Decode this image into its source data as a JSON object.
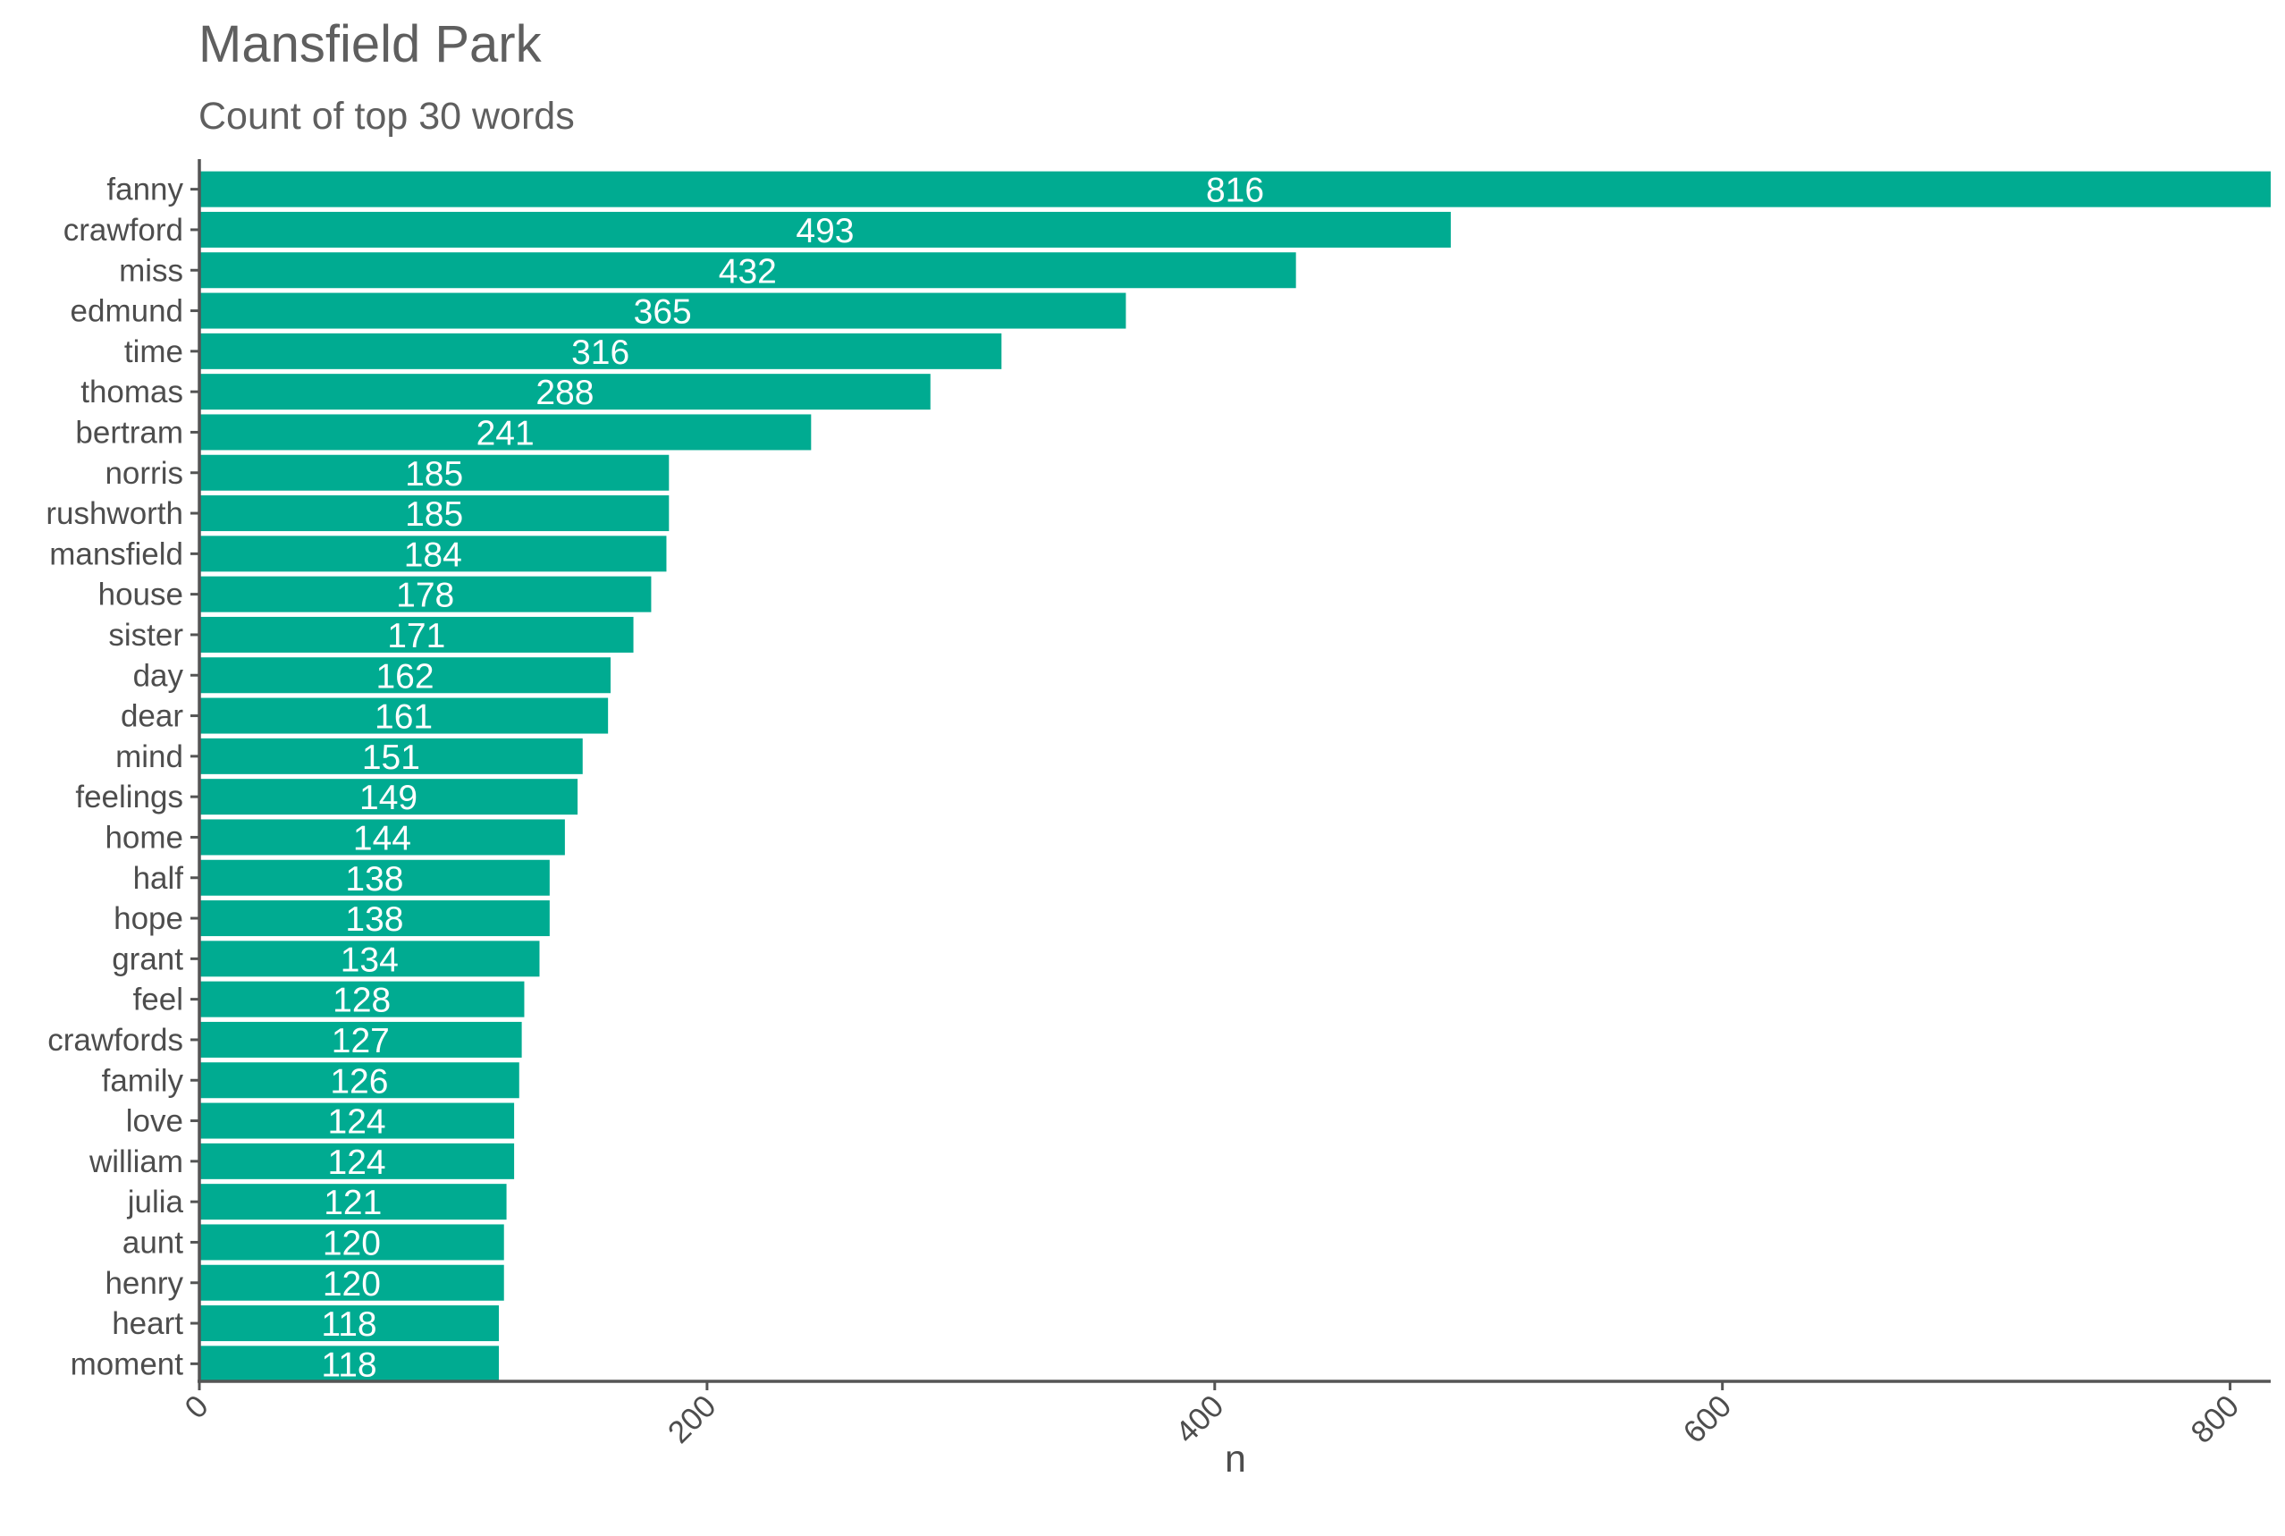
{
  "chart_data": {
    "type": "bar",
    "orientation": "horizontal",
    "title": "Mansfield Park",
    "subtitle": "Count of top 30 words",
    "xlabel": "n",
    "ylabel": "",
    "xlim": [
      0,
      816
    ],
    "xticks": [
      "0",
      "200",
      "400",
      "600",
      "800"
    ],
    "bar_color": "#00AB91",
    "label_color": "#ffffff",
    "categories": [
      "fanny",
      "crawford",
      "miss",
      "edmund",
      "time",
      "thomas",
      "bertram",
      "norris",
      "rushworth",
      "mansfield",
      "house",
      "sister",
      "day",
      "dear",
      "mind",
      "feelings",
      "home",
      "half",
      "hope",
      "grant",
      "feel",
      "crawfords",
      "family",
      "love",
      "william",
      "julia",
      "aunt",
      "henry",
      "heart",
      "moment"
    ],
    "values": [
      816,
      493,
      432,
      365,
      316,
      288,
      241,
      185,
      185,
      184,
      178,
      171,
      162,
      161,
      151,
      149,
      144,
      138,
      138,
      134,
      128,
      127,
      126,
      124,
      124,
      121,
      120,
      120,
      118,
      118
    ],
    "value_labels": [
      "816",
      "493",
      "432",
      "365",
      "316",
      "288",
      "241",
      "185",
      "185",
      "184",
      "178",
      "171",
      "162",
      "161",
      "151",
      "149",
      "144",
      "138",
      "138",
      "134",
      "128",
      "127",
      "126",
      "124",
      "124",
      "121",
      "120",
      "120",
      "118",
      "118"
    ]
  }
}
